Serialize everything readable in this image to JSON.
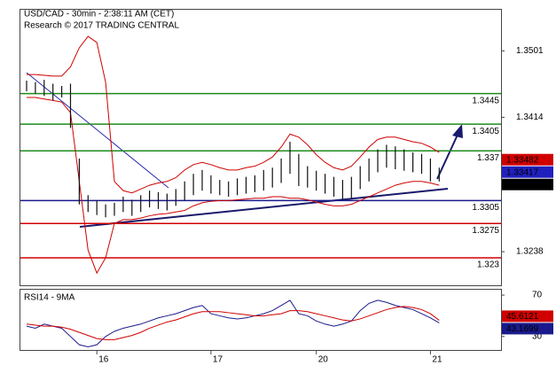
{
  "chart_data": {
    "type": "ohlc",
    "title": "USD/CAD - 30min - 2:38:11 AM (CET)",
    "subtitle": "Research © 2017 TRADING CENTRAL",
    "categories": [
      null,
      null,
      null,
      null,
      null,
      null,
      null,
      null,
      "16",
      null,
      null,
      null,
      null,
      null,
      null,
      null,
      null,
      null,
      null,
      null,
      null,
      "17",
      null,
      null,
      null,
      null,
      null,
      null,
      null,
      null,
      null,
      null,
      null,
      "20",
      null,
      null,
      null,
      null,
      null,
      null,
      null,
      null,
      null,
      null,
      null,
      null,
      "21",
      null
    ],
    "high": [
      1.3462,
      1.346,
      1.3463,
      1.3458,
      1.3455,
      1.3458,
      1.336,
      1.3312,
      1.3305,
      1.33,
      1.3302,
      1.331,
      1.3306,
      1.3312,
      1.3318,
      1.3316,
      1.3314,
      1.332,
      1.333,
      1.334,
      1.3345,
      1.3338,
      1.3332,
      1.333,
      1.3334,
      1.3336,
      1.3338,
      1.3345,
      1.3348,
      1.336,
      1.3382,
      1.3366,
      1.335,
      1.3344,
      1.334,
      1.3336,
      1.3332,
      1.3336,
      1.335,
      1.336,
      1.3372,
      1.3378,
      1.3376,
      1.3372,
      1.3368,
      1.3366,
      1.336,
      1.3348
    ],
    "low": [
      1.3448,
      1.3445,
      1.3442,
      1.3436,
      1.344,
      1.34,
      1.33,
      1.329,
      1.3286,
      1.3283,
      1.3285,
      1.329,
      1.3285,
      1.329,
      1.3296,
      1.3294,
      1.3292,
      1.3298,
      1.3305,
      1.3312,
      1.3318,
      1.3314,
      1.3312,
      1.331,
      1.3312,
      1.3314,
      1.3316,
      1.3318,
      1.3322,
      1.3328,
      1.334,
      1.3324,
      1.3322,
      1.3318,
      1.3314,
      1.331,
      1.3306,
      1.3308,
      1.332,
      1.333,
      1.3342,
      1.3348,
      1.3346,
      1.3344,
      1.3342,
      1.334,
      1.333,
      1.333
    ],
    "bands": [
      {
        "color": "#d00000",
        "values": [
          1.347,
          1.347,
          1.3469,
          1.3468,
          1.3468,
          1.348,
          1.3505,
          1.352,
          1.3512,
          1.346,
          1.333,
          1.3318,
          1.3315,
          1.332,
          1.3325,
          1.3328,
          1.333,
          1.3335,
          1.3345,
          1.3352,
          1.3355,
          1.3352,
          1.3348,
          1.3345,
          1.3345,
          1.3348,
          1.335,
          1.3355,
          1.3362,
          1.3375,
          1.3392,
          1.3388,
          1.3378,
          1.3365,
          1.3355,
          1.3348,
          1.3345,
          1.335,
          1.3362,
          1.3375,
          1.3385,
          1.3388,
          1.3388,
          1.3385,
          1.3382,
          1.338,
          1.3375,
          1.3368
        ]
      },
      {
        "color": "#d00000",
        "values": [
          1.344,
          1.344,
          1.3438,
          1.3436,
          1.3434,
          1.342,
          1.333,
          1.324,
          1.321,
          1.323,
          1.3275,
          1.328,
          1.328,
          1.3282,
          1.3285,
          1.3287,
          1.3288,
          1.329,
          1.3292,
          1.3298,
          1.3302,
          1.3304,
          1.3305,
          1.3305,
          1.3306,
          1.3307,
          1.3308,
          1.3308,
          1.331,
          1.331,
          1.3308,
          1.3308,
          1.3306,
          1.3303,
          1.33,
          1.3298,
          1.3298,
          1.33,
          1.3305,
          1.331,
          1.3315,
          1.332,
          1.3325,
          1.3328,
          1.333,
          1.333,
          1.3328,
          1.3325
        ]
      }
    ],
    "ylim": [
      1.3194,
      1.3556
    ],
    "yticks": [
      1.3238,
      1.3414,
      1.3501
    ],
    "levels": [
      {
        "value": 1.3445,
        "color": "#1e8c1e"
      },
      {
        "value": 1.3405,
        "color": "#1e8c1e"
      },
      {
        "value": 1.337,
        "color": "#1e8c1e"
      },
      {
        "value": 1.3305,
        "color": "#1a1a8c"
      },
      {
        "value": 1.3275,
        "color": "#d00000"
      },
      {
        "value": 1.323,
        "color": "#d00000"
      }
    ],
    "price_tags": [
      {
        "value": 1.33482,
        "color": "#d00000"
      },
      {
        "value": 1.33417,
        "color": "#2020c0"
      },
      {
        "value": 1.33334,
        "color": "#000000"
      }
    ],
    "rsi": {
      "label": "RSI14 - 9MA",
      "ylim": [
        17,
        75.2
      ],
      "yticks": [
        30,
        70
      ],
      "series": [
        {
          "color": "#1a1a8c",
          "values": [
            40,
            38,
            42,
            40,
            38,
            30,
            22,
            20,
            22,
            30,
            35,
            38,
            40,
            42,
            45,
            48,
            50,
            52,
            55,
            58,
            60,
            52,
            50,
            48,
            47,
            48,
            50,
            52,
            55,
            60,
            65,
            52,
            50,
            45,
            42,
            40,
            42,
            45,
            55,
            62,
            65,
            63,
            60,
            58,
            56,
            52,
            48,
            43.1699
          ]
        },
        {
          "color": "#d00000",
          "values": [
            42,
            41,
            40,
            40,
            39,
            37,
            34,
            31,
            28,
            27,
            27,
            29,
            31,
            34,
            38,
            41,
            44,
            46,
            49,
            52,
            54,
            54,
            54,
            53,
            52,
            51,
            50,
            50,
            51,
            52,
            55,
            55,
            54,
            52,
            50,
            48,
            46,
            45,
            47,
            50,
            53,
            56,
            58,
            59,
            58,
            56,
            52,
            45.6121
          ]
        }
      ]
    }
  }
}
